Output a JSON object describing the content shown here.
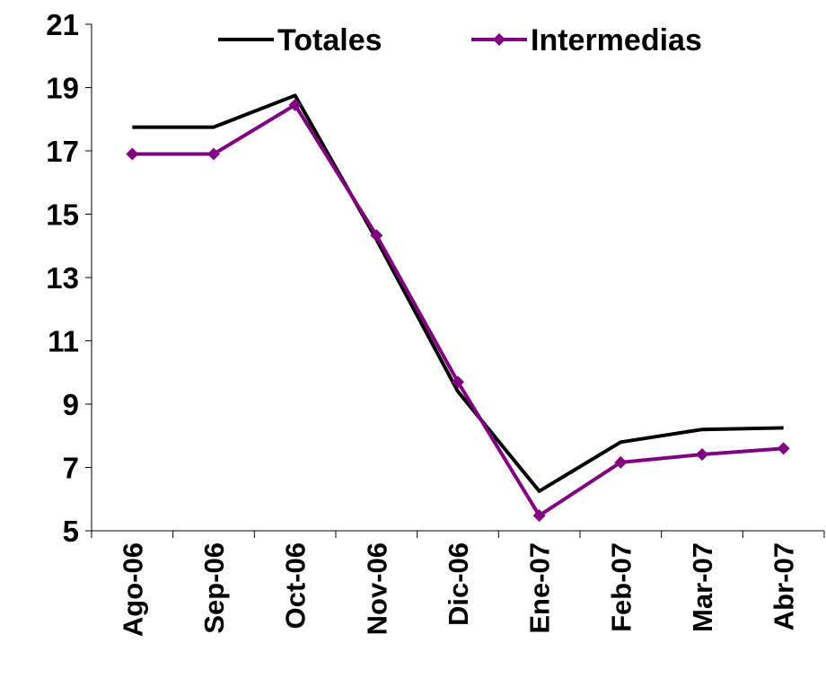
{
  "chart_data": {
    "type": "line",
    "categories": [
      "Ago-06",
      "Sep-06",
      "Oct-06",
      "Nov-06",
      "Dic-06",
      "Ene-07",
      "Feb-07",
      "Mar-07",
      "Abr-07"
    ],
    "series": [
      {
        "name": "Totales",
        "color": "#000000",
        "marker": false,
        "values": [
          17.75,
          17.75,
          18.75,
          14.2,
          9.4,
          6.25,
          7.8,
          8.2,
          8.25
        ]
      },
      {
        "name": "Intermedias",
        "color": "#800080",
        "marker": true,
        "values": [
          16.9,
          16.9,
          18.45,
          14.33,
          9.7,
          5.48,
          7.16,
          7.41,
          7.6
        ]
      }
    ],
    "ylim": [
      5,
      21
    ],
    "yticks": [
      5,
      7,
      9,
      11,
      13,
      15,
      17,
      19,
      21
    ],
    "grid": false,
    "legend": "top"
  }
}
